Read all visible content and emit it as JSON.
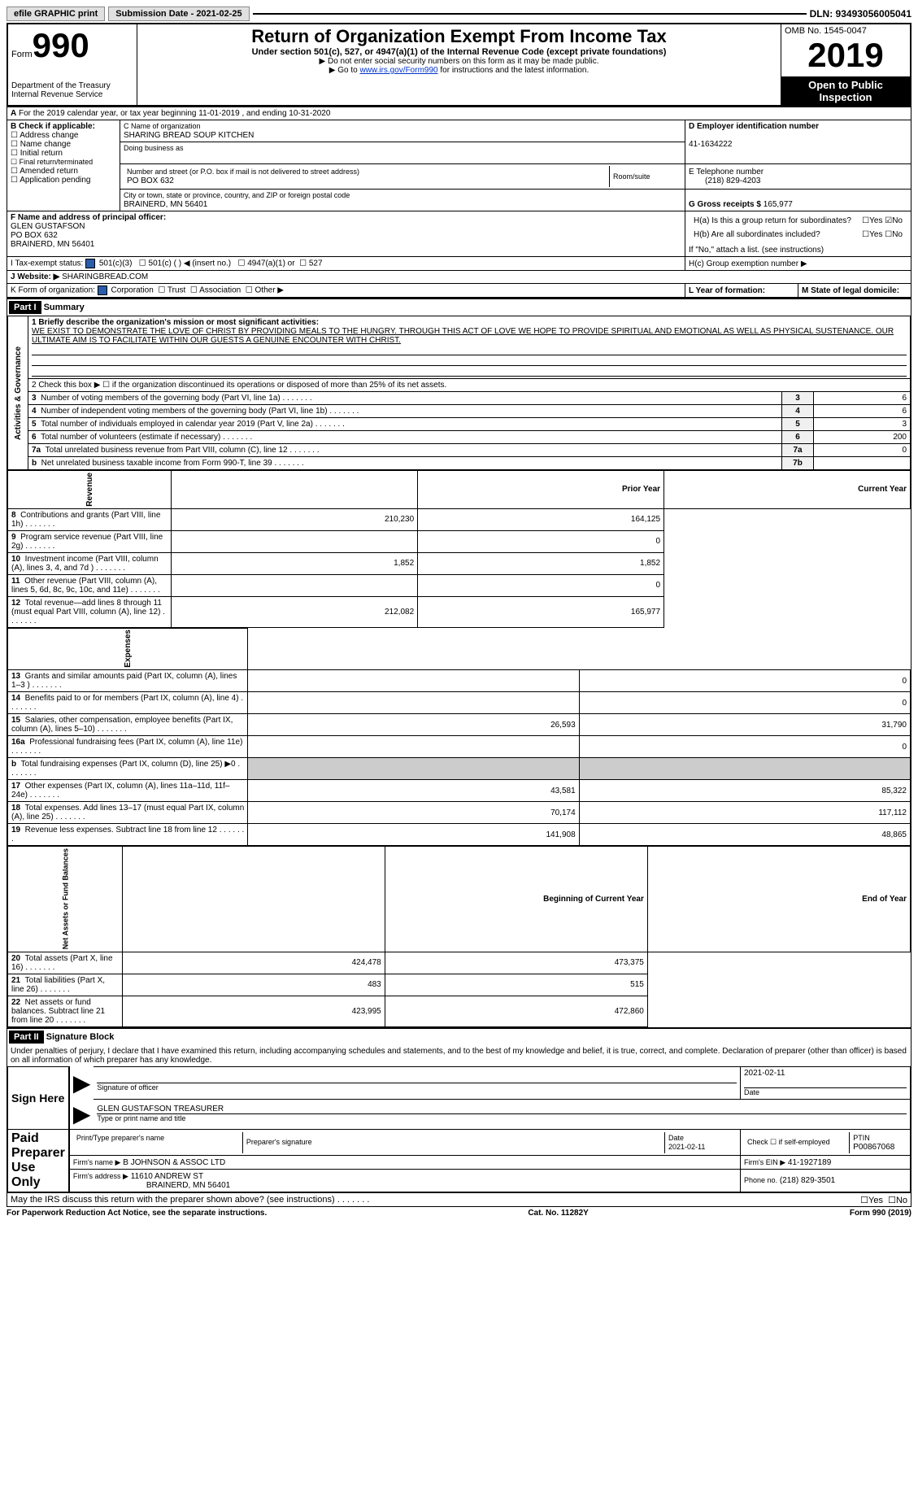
{
  "topbar": {
    "efile": "efile GRAPHIC print",
    "submission_label": "Submission Date - 2021-02-25",
    "dln": "DLN: 93493056005041"
  },
  "header": {
    "form_label": "Form",
    "form_number": "990",
    "dept": "Department of the Treasury\nInternal Revenue Service",
    "title": "Return of Organization Exempt From Income Tax",
    "subtitle": "Under section 501(c), 527, or 4947(a)(1) of the Internal Revenue Code (except private foundations)",
    "note1": "▶ Do not enter social security numbers on this form as it may be made public.",
    "note2_pre": "▶ Go to ",
    "note2_link": "www.irs.gov/Form990",
    "note2_post": " for instructions and the latest information.",
    "omb": "OMB No. 1545-0047",
    "year": "2019",
    "open": "Open to Public Inspection"
  },
  "periodA": "For the 2019 calendar year, or tax year beginning 11-01-2019   , and ending 10-31-2020",
  "boxB": {
    "label": "B Check if applicable:",
    "opts": [
      "Address change",
      "Name change",
      "Initial return",
      "Final return/terminated",
      "Amended return",
      "Application pending"
    ]
  },
  "boxC": {
    "name_label": "C Name of organization",
    "name": "SHARING BREAD SOUP KITCHEN",
    "dba_label": "Doing business as",
    "addr_label": "Number and street (or P.O. box if mail is not delivered to street address)",
    "room_label": "Room/suite",
    "addr": "PO BOX 632",
    "city_label": "City or town, state or province, country, and ZIP or foreign postal code",
    "city": "BRAINERD, MN  56401"
  },
  "boxD": {
    "label": "D Employer identification number",
    "val": "41-1634222"
  },
  "boxE": {
    "label": "E Telephone number",
    "val": "(218) 829-4203"
  },
  "boxG": {
    "label": "G Gross receipts $",
    "val": "165,977"
  },
  "boxF": {
    "label": "F Name and address of principal officer:",
    "name": "GLEN GUSTAFSON",
    "addr": "PO BOX 632",
    "city": "BRAINERD, MN  56401"
  },
  "boxH": {
    "a": "H(a) Is this a group return for subordinates?",
    "b": "H(b) Are all subordinates included?",
    "note": "If \"No,\" attach a list. (see instructions)",
    "c": "H(c) Group exemption number ▶",
    "yes": "Yes",
    "no": "No"
  },
  "boxI": {
    "label": "I   Tax-exempt status:",
    "opts": [
      "501(c)(3)",
      "501(c) (  ) ◀ (insert no.)",
      "4947(a)(1) or",
      "527"
    ]
  },
  "boxJ": {
    "label": "J   Website: ▶",
    "val": "SHARINGBREAD.COM"
  },
  "boxK": {
    "label": "K Form of organization:",
    "opts": [
      "Corporation",
      "Trust",
      "Association",
      "Other ▶"
    ]
  },
  "boxL": {
    "label": "L Year of formation:"
  },
  "boxM": {
    "label": "M State of legal domicile:"
  },
  "part1": {
    "header": "Part I",
    "title": "Summary",
    "q1_label": "1  Briefly describe the organization's mission or most significant activities:",
    "q1_text": "WE EXIST TO DEMONSTRATE THE LOVE OF CHRIST BY PROVIDING MEALS TO THE HUNGRY. THROUGH THIS ACT OF LOVE WE HOPE TO PROVIDE SPIRITUAL AND EMOTIONAL AS WELL AS PHYSICAL SUSTENANCE. OUR ULTIMATE AIM IS TO FACILITATE WITHIN OUR GUESTS A GENUINE ENCOUNTER WITH CHRIST.",
    "q2": "2   Check this box ▶ ☐ if the organization discontinued its operations or disposed of more than 25% of its net assets.",
    "governance_label": "Activities & Governance",
    "revenue_label": "Revenue",
    "expenses_label": "Expenses",
    "netassets_label": "Net Assets or Fund Balances",
    "rows_gov": [
      {
        "n": "3",
        "t": "Number of voting members of the governing body (Part VI, line 1a)",
        "box": "3",
        "v": "6"
      },
      {
        "n": "4",
        "t": "Number of independent voting members of the governing body (Part VI, line 1b)",
        "box": "4",
        "v": "6"
      },
      {
        "n": "5",
        "t": "Total number of individuals employed in calendar year 2019 (Part V, line 2a)",
        "box": "5",
        "v": "3"
      },
      {
        "n": "6",
        "t": "Total number of volunteers (estimate if necessary)",
        "box": "6",
        "v": "200"
      },
      {
        "n": "7a",
        "t": "Total unrelated business revenue from Part VIII, column (C), line 12",
        "box": "7a",
        "v": "0"
      },
      {
        "n": "b",
        "t": "Net unrelated business taxable income from Form 990-T, line 39",
        "box": "7b",
        "v": ""
      }
    ],
    "col_prior": "Prior Year",
    "col_current": "Current Year",
    "rows_rev": [
      {
        "n": "8",
        "t": "Contributions and grants (Part VIII, line 1h)",
        "p": "210,230",
        "c": "164,125"
      },
      {
        "n": "9",
        "t": "Program service revenue (Part VIII, line 2g)",
        "p": "",
        "c": "0"
      },
      {
        "n": "10",
        "t": "Investment income (Part VIII, column (A), lines 3, 4, and 7d )",
        "p": "1,852",
        "c": "1,852"
      },
      {
        "n": "11",
        "t": "Other revenue (Part VIII, column (A), lines 5, 6d, 8c, 9c, 10c, and 11e)",
        "p": "",
        "c": "0"
      },
      {
        "n": "12",
        "t": "Total revenue—add lines 8 through 11 (must equal Part VIII, column (A), line 12)",
        "p": "212,082",
        "c": "165,977"
      }
    ],
    "rows_exp": [
      {
        "n": "13",
        "t": "Grants and similar amounts paid (Part IX, column (A), lines 1–3 )",
        "p": "",
        "c": "0"
      },
      {
        "n": "14",
        "t": "Benefits paid to or for members (Part IX, column (A), line 4)",
        "p": "",
        "c": "0"
      },
      {
        "n": "15",
        "t": "Salaries, other compensation, employee benefits (Part IX, column (A), lines 5–10)",
        "p": "26,593",
        "c": "31,790"
      },
      {
        "n": "16a",
        "t": "Professional fundraising fees (Part IX, column (A), line 11e)",
        "p": "",
        "c": "0"
      },
      {
        "n": "b",
        "t": "Total fundraising expenses (Part IX, column (D), line 25) ▶0",
        "p": "__SHADE__",
        "c": "__SHADE__"
      },
      {
        "n": "17",
        "t": "Other expenses (Part IX, column (A), lines 11a–11d, 11f–24e)",
        "p": "43,581",
        "c": "85,322"
      },
      {
        "n": "18",
        "t": "Total expenses. Add lines 13–17 (must equal Part IX, column (A), line 25)",
        "p": "70,174",
        "c": "117,112"
      },
      {
        "n": "19",
        "t": "Revenue less expenses. Subtract line 18 from line 12",
        "p": "141,908",
        "c": "48,865"
      }
    ],
    "col_begin": "Beginning of Current Year",
    "col_end": "End of Year",
    "rows_net": [
      {
        "n": "20",
        "t": "Total assets (Part X, line 16)",
        "p": "424,478",
        "c": "473,375"
      },
      {
        "n": "21",
        "t": "Total liabilities (Part X, line 26)",
        "p": "483",
        "c": "515"
      },
      {
        "n": "22",
        "t": "Net assets or fund balances. Subtract line 21 from line 20",
        "p": "423,995",
        "c": "472,860"
      }
    ]
  },
  "part2": {
    "header": "Part II",
    "title": "Signature Block",
    "declaration": "Under penalties of perjury, I declare that I have examined this return, including accompanying schedules and statements, and to the best of my knowledge and belief, it is true, correct, and complete. Declaration of preparer (other than officer) is based on all information of which preparer has any knowledge.",
    "sign_here": "Sign Here",
    "sig_officer": "Signature of officer",
    "sig_date": "2021-02-11",
    "date_label": "Date",
    "officer_name": "GLEN GUSTAFSON TREASURER",
    "type_name": "Type or print name and title",
    "paid": "Paid Preparer Use Only",
    "prep_name_label": "Print/Type preparer's name",
    "prep_sig_label": "Preparer's signature",
    "prep_date": "Date\n2021-02-11",
    "check_self": "Check ☐ if self-employed",
    "ptin_label": "PTIN",
    "ptin": "P00867068",
    "firm_name_label": "Firm's name    ▶",
    "firm_name": "B JOHNSON & ASSOC LTD",
    "firm_ein_label": "Firm's EIN ▶",
    "firm_ein": "41-1927189",
    "firm_addr_label": "Firm's address ▶",
    "firm_addr": "11610 ANDREW ST",
    "firm_city": "BRAINERD, MN  56401",
    "phone_label": "Phone no.",
    "phone": "(218) 829-3501",
    "discuss": "May the IRS discuss this return with the preparer shown above? (see instructions)"
  },
  "footer": {
    "paperwork": "For Paperwork Reduction Act Notice, see the separate instructions.",
    "cat": "Cat. No. 11282Y",
    "form": "Form 990 (2019)"
  }
}
